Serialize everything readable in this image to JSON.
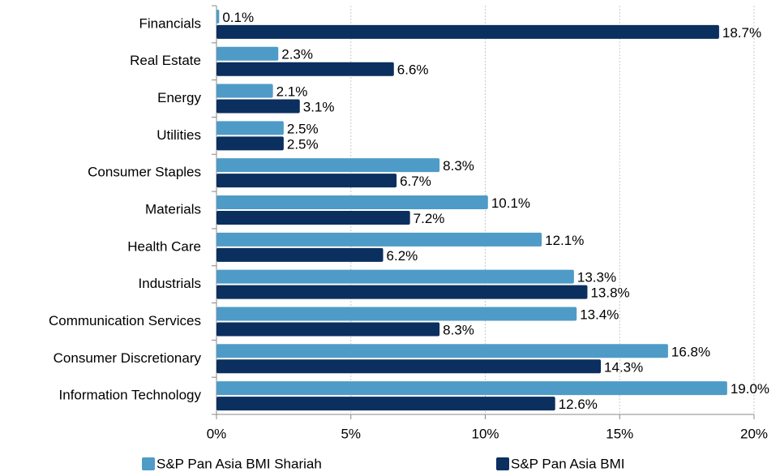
{
  "chart_data": {
    "type": "hbar",
    "categories": [
      "Financials",
      "Real Estate",
      "Energy",
      "Utilities",
      "Consumer Staples",
      "Materials",
      "Health Care",
      "Industrials",
      "Communication Services",
      "Consumer Discretionary",
      "Information Technology"
    ],
    "series": [
      {
        "name": "S&P Pan Asia BMI Shariah",
        "color": "#4f9bc7",
        "values": [
          0.1,
          2.3,
          2.1,
          2.5,
          8.3,
          10.1,
          12.1,
          13.3,
          13.4,
          16.8,
          19.0
        ],
        "value_labels": [
          "0.1%",
          "2.3%",
          "2.1%",
          "2.5%",
          "8.3%",
          "10.1%",
          "12.1%",
          "13.3%",
          "13.4%",
          "16.8%",
          "19.0%"
        ]
      },
      {
        "name": "S&P Pan Asia BMI",
        "color": "#0b2f5e",
        "values": [
          18.7,
          6.6,
          3.1,
          2.5,
          6.7,
          7.2,
          6.2,
          13.8,
          8.3,
          14.3,
          12.6
        ],
        "value_labels": [
          "18.7%",
          "6.6%",
          "3.1%",
          "2.5%",
          "6.7%",
          "7.2%",
          "6.2%",
          "13.8%",
          "8.3%",
          "14.3%",
          "12.6%"
        ]
      }
    ],
    "xlim": [
      0,
      20
    ],
    "xticks": [
      {
        "value": 0,
        "label": "0%"
      },
      {
        "value": 5,
        "label": "5%"
      },
      {
        "value": 10,
        "label": "10%"
      },
      {
        "value": 15,
        "label": "15%"
      },
      {
        "value": 20,
        "label": "20%"
      }
    ],
    "grid": true
  }
}
